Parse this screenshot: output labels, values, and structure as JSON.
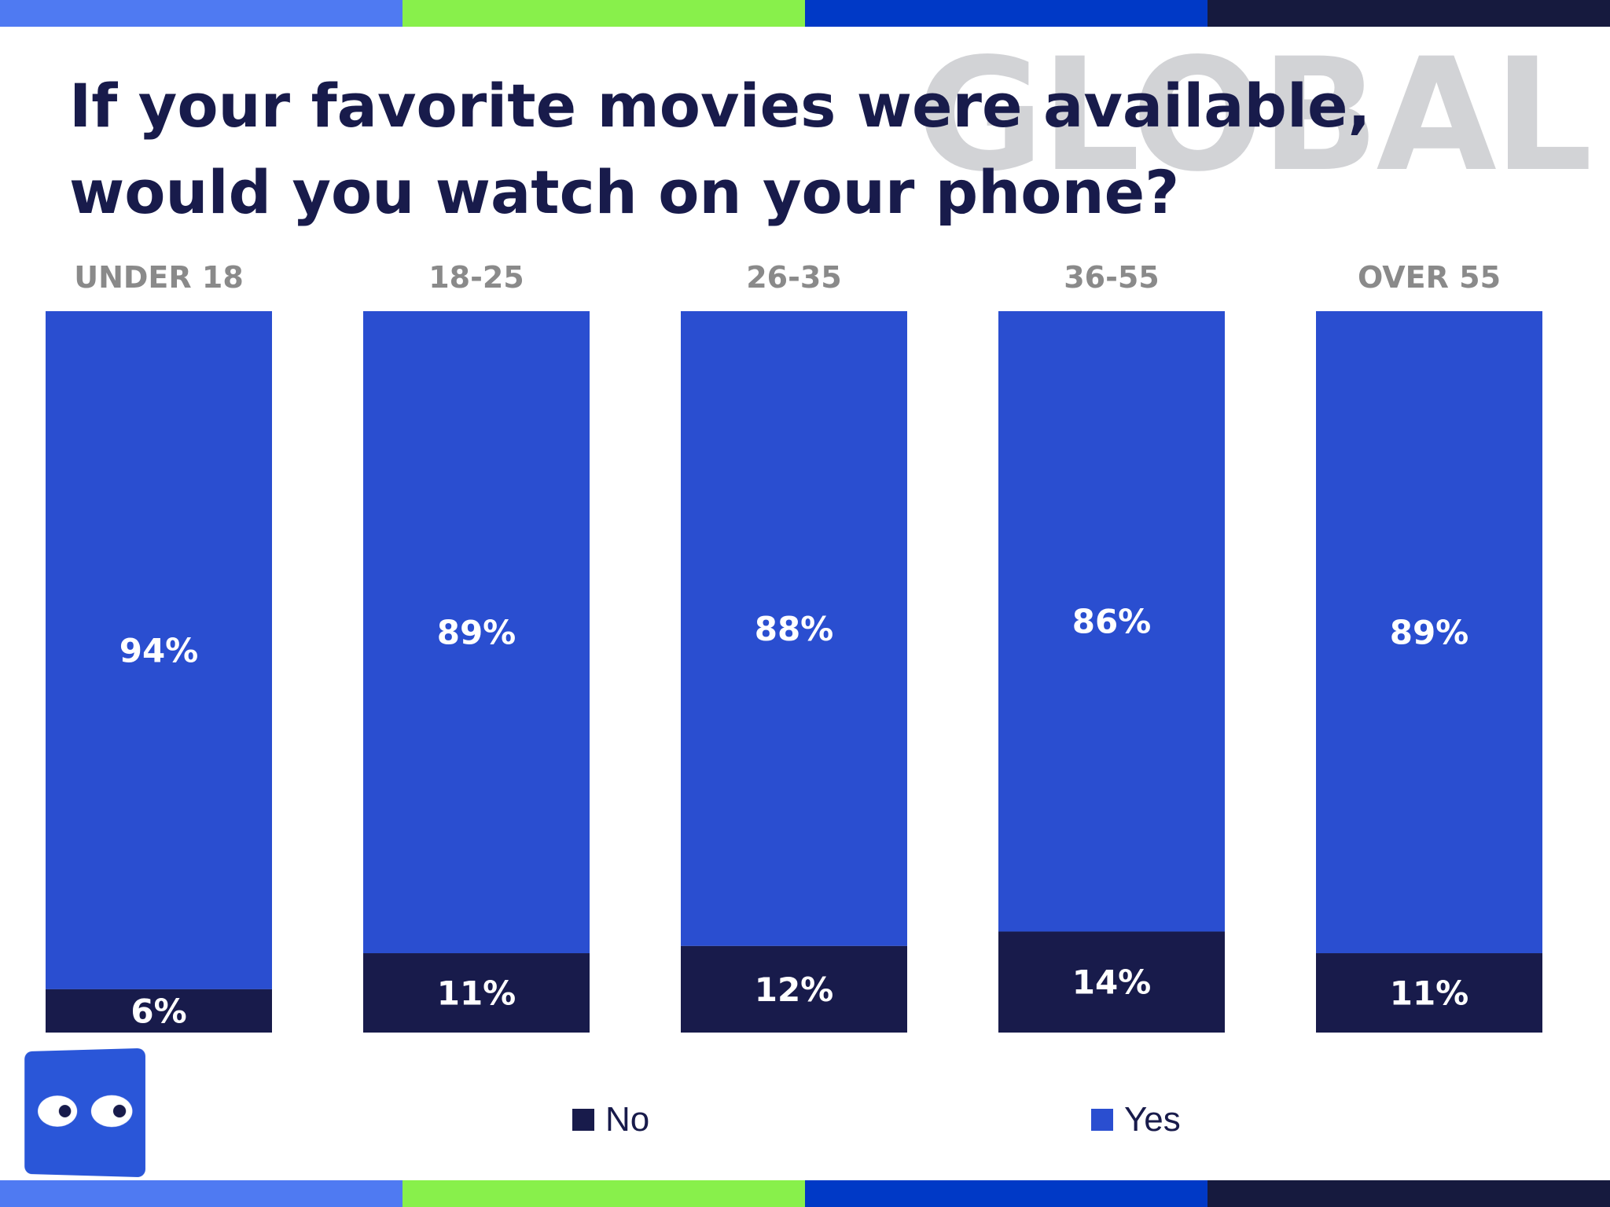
{
  "title": "If your favorite movies were available, would you watch on your phone?",
  "watermark": "GLOBAL",
  "colors": {
    "yes": "#2a4ed0",
    "no": "#181b4b",
    "title": "#181b4b",
    "category_label": "#8a8a8a",
    "watermark": "#d2d3d6",
    "stripe": [
      "#4f7af2",
      "#88f04b",
      "#0039c6",
      "#161a3e"
    ],
    "logo": "#2a56d8"
  },
  "logo_icon": "eyes-icon",
  "chart_data": {
    "type": "bar",
    "stacked": true,
    "normalized": true,
    "categories": [
      "UNDER 18",
      "18-25",
      "26-35",
      "36-55",
      "OVER 55"
    ],
    "series": [
      {
        "name": "No",
        "values": [
          6,
          11,
          12,
          14,
          11
        ],
        "labels": [
          "6%",
          "11%",
          "12%",
          "14%",
          "11%"
        ]
      },
      {
        "name": "Yes",
        "values": [
          94,
          89,
          88,
          86,
          89
        ],
        "labels": [
          "94%",
          "89%",
          "88%",
          "86%",
          "89%"
        ]
      }
    ],
    "ylim": [
      0,
      100
    ],
    "grid": false,
    "legend": "bottom"
  },
  "legend": {
    "no": "No",
    "yes": "Yes"
  }
}
